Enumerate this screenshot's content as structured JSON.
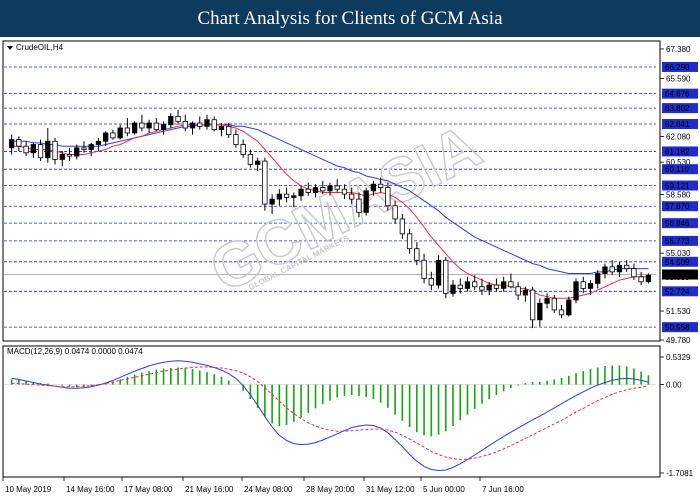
{
  "header": {
    "title": "Chart Analysis for Clients of GCM Asia"
  },
  "watermark": {
    "text": "GCMASIA",
    "subtext": "GLOBAL CAPITAL MARKETS"
  },
  "colors": {
    "banner": "#0e3a5e",
    "level_line": "#1f2cc8",
    "level_label_bg": "#1f2cc8",
    "current_bg": "#000000",
    "ma_fast": "#e8314a",
    "ma_slow": "#2a3fd6",
    "candle": "#000000",
    "hist_pos": "#1aa01a",
    "macd_line": "#2a3fd6",
    "signal_line": "#e8314a"
  },
  "chart_data": [
    {
      "type": "candlestick",
      "symbol_label": "CrudeOIL,H4",
      "x_ticks": [
        "10 May 2019",
        "14 May 16:00",
        "17 May 08:00",
        "21 May 16:00",
        "24 May 08:00",
        "28 May 20:00",
        "31 May 12:00",
        "5 Jun 00:00",
        "7 Jun 16:00"
      ],
      "y_ticks": [
        "67.380",
        "65.590",
        "62.080",
        "60.530",
        "58.580",
        "55.030",
        "51.530",
        "49.780"
      ],
      "ylim": [
        49.78,
        67.8
      ],
      "horizontal_levels": [
        "66.290",
        "64.676",
        "63.802",
        "62.841",
        "61.182",
        "60.110",
        "59.121",
        "57.870",
        "56.846",
        "55.773",
        "54.509",
        "52.724",
        "50.558"
      ],
      "current_price": "53.740",
      "current_price_secondary": "53.580",
      "candles": [
        {
          "o": 61.4,
          "h": 62.2,
          "l": 61.0,
          "c": 61.9
        },
        {
          "o": 61.9,
          "h": 62.1,
          "l": 61.2,
          "c": 61.5
        },
        {
          "o": 61.5,
          "h": 61.8,
          "l": 60.9,
          "c": 61.1
        },
        {
          "o": 61.1,
          "h": 61.7,
          "l": 60.8,
          "c": 61.6
        },
        {
          "o": 61.6,
          "h": 61.9,
          "l": 60.6,
          "c": 60.8
        },
        {
          "o": 60.8,
          "h": 62.6,
          "l": 60.5,
          "c": 61.8
        },
        {
          "o": 61.8,
          "h": 62.0,
          "l": 60.4,
          "c": 60.7
        },
        {
          "o": 60.7,
          "h": 61.2,
          "l": 60.3,
          "c": 61.0
        },
        {
          "o": 61.0,
          "h": 61.4,
          "l": 60.6,
          "c": 60.9
        },
        {
          "o": 60.9,
          "h": 61.6,
          "l": 60.7,
          "c": 61.4
        },
        {
          "o": 61.4,
          "h": 61.8,
          "l": 61.1,
          "c": 61.3
        },
        {
          "o": 61.3,
          "h": 61.7,
          "l": 60.9,
          "c": 61.6
        },
        {
          "o": 61.6,
          "h": 62.0,
          "l": 61.2,
          "c": 61.8
        },
        {
          "o": 61.8,
          "h": 62.4,
          "l": 61.5,
          "c": 62.3
        },
        {
          "o": 62.3,
          "h": 62.5,
          "l": 61.9,
          "c": 62.0
        },
        {
          "o": 62.0,
          "h": 62.8,
          "l": 61.9,
          "c": 62.6
        },
        {
          "o": 62.6,
          "h": 63.2,
          "l": 62.1,
          "c": 62.3
        },
        {
          "o": 62.3,
          "h": 63.0,
          "l": 62.2,
          "c": 62.9
        },
        {
          "o": 62.9,
          "h": 63.4,
          "l": 62.4,
          "c": 62.6
        },
        {
          "o": 62.6,
          "h": 63.1,
          "l": 62.3,
          "c": 62.9
        },
        {
          "o": 62.9,
          "h": 63.2,
          "l": 62.4,
          "c": 62.5
        },
        {
          "o": 62.5,
          "h": 63.0,
          "l": 62.2,
          "c": 62.8
        },
        {
          "o": 62.8,
          "h": 63.5,
          "l": 62.6,
          "c": 63.3
        },
        {
          "o": 63.3,
          "h": 63.7,
          "l": 62.8,
          "c": 63.0
        },
        {
          "o": 63.0,
          "h": 63.4,
          "l": 62.4,
          "c": 62.6
        },
        {
          "o": 62.6,
          "h": 63.0,
          "l": 62.2,
          "c": 62.9
        },
        {
          "o": 62.9,
          "h": 63.3,
          "l": 62.5,
          "c": 62.7
        },
        {
          "o": 62.7,
          "h": 63.4,
          "l": 62.5,
          "c": 63.1
        },
        {
          "o": 63.1,
          "h": 63.3,
          "l": 62.4,
          "c": 62.5
        },
        {
          "o": 62.5,
          "h": 62.9,
          "l": 62.1,
          "c": 62.7
        },
        {
          "o": 62.7,
          "h": 62.9,
          "l": 62.0,
          "c": 62.2
        },
        {
          "o": 62.2,
          "h": 62.5,
          "l": 61.4,
          "c": 61.6
        },
        {
          "o": 61.6,
          "h": 61.9,
          "l": 60.8,
          "c": 61.0
        },
        {
          "o": 61.0,
          "h": 61.3,
          "l": 60.2,
          "c": 60.4
        },
        {
          "o": 60.4,
          "h": 60.8,
          "l": 60.0,
          "c": 60.6
        },
        {
          "o": 60.6,
          "h": 60.8,
          "l": 57.6,
          "c": 58.0
        },
        {
          "o": 58.0,
          "h": 58.6,
          "l": 57.4,
          "c": 58.3
        },
        {
          "o": 58.3,
          "h": 58.9,
          "l": 57.9,
          "c": 58.6
        },
        {
          "o": 58.6,
          "h": 59.0,
          "l": 58.1,
          "c": 58.4
        },
        {
          "o": 58.4,
          "h": 58.7,
          "l": 57.8,
          "c": 58.5
        },
        {
          "o": 58.5,
          "h": 59.1,
          "l": 58.2,
          "c": 58.9
        },
        {
          "o": 58.9,
          "h": 59.3,
          "l": 58.5,
          "c": 58.7
        },
        {
          "o": 58.7,
          "h": 59.2,
          "l": 58.4,
          "c": 59.0
        },
        {
          "o": 59.0,
          "h": 59.4,
          "l": 58.6,
          "c": 58.8
        },
        {
          "o": 58.8,
          "h": 59.3,
          "l": 58.5,
          "c": 59.1
        },
        {
          "o": 59.1,
          "h": 59.5,
          "l": 58.7,
          "c": 58.9
        },
        {
          "o": 58.9,
          "h": 59.2,
          "l": 58.3,
          "c": 58.6
        },
        {
          "o": 58.6,
          "h": 59.0,
          "l": 58.0,
          "c": 58.3
        },
        {
          "o": 58.3,
          "h": 58.7,
          "l": 57.2,
          "c": 57.5
        },
        {
          "o": 57.5,
          "h": 59.0,
          "l": 57.3,
          "c": 58.8
        },
        {
          "o": 58.8,
          "h": 59.4,
          "l": 58.5,
          "c": 59.2
        },
        {
          "o": 59.2,
          "h": 59.6,
          "l": 58.7,
          "c": 59.0
        },
        {
          "o": 59.0,
          "h": 59.3,
          "l": 57.6,
          "c": 57.9
        },
        {
          "o": 57.9,
          "h": 58.2,
          "l": 56.8,
          "c": 57.1
        },
        {
          "o": 57.1,
          "h": 57.4,
          "l": 55.9,
          "c": 56.2
        },
        {
          "o": 56.2,
          "h": 56.5,
          "l": 55.0,
          "c": 55.3
        },
        {
          "o": 55.3,
          "h": 55.7,
          "l": 54.3,
          "c": 54.6
        },
        {
          "o": 54.6,
          "h": 55.0,
          "l": 53.2,
          "c": 53.5
        },
        {
          "o": 53.5,
          "h": 53.9,
          "l": 52.8,
          "c": 53.1
        },
        {
          "o": 53.1,
          "h": 54.9,
          "l": 52.9,
          "c": 54.6
        },
        {
          "o": 54.6,
          "h": 54.8,
          "l": 52.3,
          "c": 52.6
        },
        {
          "o": 52.6,
          "h": 53.4,
          "l": 52.4,
          "c": 53.1
        },
        {
          "o": 53.1,
          "h": 53.5,
          "l": 52.6,
          "c": 52.9
        },
        {
          "o": 52.9,
          "h": 53.6,
          "l": 52.7,
          "c": 53.3
        },
        {
          "o": 53.3,
          "h": 53.7,
          "l": 52.8,
          "c": 53.0
        },
        {
          "o": 53.0,
          "h": 53.5,
          "l": 52.5,
          "c": 52.8
        },
        {
          "o": 52.8,
          "h": 53.3,
          "l": 52.5,
          "c": 53.1
        },
        {
          "o": 53.1,
          "h": 53.5,
          "l": 52.7,
          "c": 52.9
        },
        {
          "o": 52.9,
          "h": 53.6,
          "l": 52.7,
          "c": 53.3
        },
        {
          "o": 53.3,
          "h": 53.8,
          "l": 52.9,
          "c": 53.0
        },
        {
          "o": 53.0,
          "h": 53.3,
          "l": 52.2,
          "c": 52.5
        },
        {
          "o": 52.5,
          "h": 53.0,
          "l": 52.1,
          "c": 52.8
        },
        {
          "o": 52.8,
          "h": 53.0,
          "l": 50.5,
          "c": 51.0
        },
        {
          "o": 51.0,
          "h": 52.3,
          "l": 50.6,
          "c": 52.0
        },
        {
          "o": 52.0,
          "h": 52.6,
          "l": 51.7,
          "c": 52.3
        },
        {
          "o": 52.3,
          "h": 52.5,
          "l": 51.4,
          "c": 51.6
        },
        {
          "o": 51.6,
          "h": 51.9,
          "l": 51.1,
          "c": 51.3
        },
        {
          "o": 51.3,
          "h": 52.4,
          "l": 51.2,
          "c": 52.2
        },
        {
          "o": 52.2,
          "h": 53.5,
          "l": 52.0,
          "c": 53.3
        },
        {
          "o": 53.3,
          "h": 53.6,
          "l": 52.6,
          "c": 52.9
        },
        {
          "o": 52.9,
          "h": 53.4,
          "l": 52.5,
          "c": 53.2
        },
        {
          "o": 53.2,
          "h": 54.0,
          "l": 52.9,
          "c": 53.8
        },
        {
          "o": 53.8,
          "h": 54.4,
          "l": 53.5,
          "c": 54.2
        },
        {
          "o": 54.2,
          "h": 54.6,
          "l": 53.7,
          "c": 53.9
        },
        {
          "o": 53.9,
          "h": 54.5,
          "l": 53.6,
          "c": 54.3
        },
        {
          "o": 54.3,
          "h": 54.6,
          "l": 53.9,
          "c": 54.1
        },
        {
          "o": 54.1,
          "h": 54.4,
          "l": 53.4,
          "c": 53.6
        },
        {
          "o": 53.6,
          "h": 53.9,
          "l": 53.1,
          "c": 53.3
        },
        {
          "o": 53.3,
          "h": 53.8,
          "l": 53.2,
          "c": 53.7
        }
      ],
      "ma_fast": [
        61.5,
        61.5,
        61.4,
        61.3,
        61.3,
        61.3,
        61.2,
        61.1,
        61.0,
        61.0,
        61.0,
        61.1,
        61.2,
        61.3,
        61.5,
        61.6,
        61.8,
        62.0,
        62.1,
        62.3,
        62.4,
        62.5,
        62.6,
        62.7,
        62.8,
        62.8,
        62.8,
        62.8,
        62.8,
        62.8,
        62.7,
        62.6,
        62.4,
        62.1,
        61.8,
        61.3,
        60.8,
        60.3,
        59.8,
        59.4,
        59.1,
        58.9,
        58.8,
        58.7,
        58.7,
        58.7,
        58.7,
        58.7,
        58.6,
        58.5,
        58.6,
        58.7,
        58.6,
        58.4,
        58.1,
        57.7,
        57.2,
        56.6,
        56.0,
        55.5,
        55.0,
        54.5,
        54.1,
        53.8,
        53.6,
        53.4,
        53.2,
        53.1,
        53.1,
        53.0,
        52.9,
        52.9,
        52.7,
        52.5,
        52.4,
        52.3,
        52.3,
        52.3,
        52.4,
        52.5,
        52.6,
        52.8,
        53.0,
        53.2,
        53.4,
        53.5,
        53.6,
        53.6,
        53.6
      ],
      "ma_slow": [
        61.8,
        61.8,
        61.8,
        61.7,
        61.7,
        61.6,
        61.6,
        61.5,
        61.5,
        61.5,
        61.5,
        61.5,
        61.5,
        61.6,
        61.7,
        61.8,
        61.9,
        62.0,
        62.1,
        62.2,
        62.3,
        62.4,
        62.5,
        62.6,
        62.7,
        62.7,
        62.8,
        62.8,
        62.8,
        62.8,
        62.8,
        62.7,
        62.7,
        62.6,
        62.5,
        62.3,
        62.1,
        61.9,
        61.7,
        61.5,
        61.3,
        61.1,
        60.9,
        60.7,
        60.5,
        60.3,
        60.2,
        60.0,
        59.9,
        59.7,
        59.6,
        59.5,
        59.4,
        59.2,
        59.0,
        58.8,
        58.5,
        58.2,
        57.9,
        57.6,
        57.2,
        56.9,
        56.6,
        56.3,
        56.0,
        55.8,
        55.6,
        55.4,
        55.2,
        55.0,
        54.8,
        54.6,
        54.4,
        54.3,
        54.1,
        54.0,
        53.9,
        53.8,
        53.8,
        53.8,
        53.8,
        53.9,
        53.9,
        54.0,
        54.1,
        54.1,
        54.1,
        54.1,
        54.1
      ]
    },
    {
      "type": "macd",
      "label": "MACD(12,26,9) 0.0474 0.0000 0.0474",
      "y_ticks": [
        "0.5329",
        "0.00",
        "-1.7081"
      ],
      "ylim": [
        -1.7081,
        0.5329
      ],
      "histogram": [
        0.1,
        0.09,
        0.07,
        0.05,
        0.03,
        0.02,
        0.0,
        -0.02,
        -0.04,
        -0.05,
        -0.05,
        -0.03,
        -0.01,
        0.02,
        0.06,
        0.1,
        0.15,
        0.19,
        0.23,
        0.26,
        0.29,
        0.31,
        0.32,
        0.33,
        0.32,
        0.3,
        0.27,
        0.24,
        0.2,
        0.15,
        0.08,
        0.0,
        -0.12,
        -0.28,
        -0.45,
        -0.62,
        -0.75,
        -0.8,
        -0.78,
        -0.72,
        -0.64,
        -0.55,
        -0.46,
        -0.38,
        -0.31,
        -0.25,
        -0.22,
        -0.2,
        -0.22,
        -0.24,
        -0.28,
        -0.35,
        -0.45,
        -0.58,
        -0.7,
        -0.82,
        -0.92,
        -0.98,
        -1.0,
        -0.97,
        -0.9,
        -0.8,
        -0.69,
        -0.58,
        -0.47,
        -0.37,
        -0.28,
        -0.2,
        -0.13,
        -0.07,
        -0.02,
        0.03,
        0.05,
        0.05,
        0.07,
        0.1,
        0.13,
        0.17,
        0.22,
        0.26,
        0.3,
        0.33,
        0.36,
        0.37,
        0.37,
        0.35,
        0.31,
        0.25,
        0.18
      ],
      "macd": [
        0.12,
        0.1,
        0.07,
        0.04,
        0.01,
        -0.01,
        -0.03,
        -0.05,
        -0.07,
        -0.07,
        -0.06,
        -0.04,
        -0.01,
        0.03,
        0.08,
        0.14,
        0.2,
        0.26,
        0.31,
        0.36,
        0.4,
        0.43,
        0.45,
        0.46,
        0.45,
        0.43,
        0.4,
        0.37,
        0.33,
        0.28,
        0.21,
        0.12,
        -0.02,
        -0.2,
        -0.4,
        -0.62,
        -0.82,
        -0.98,
        -1.08,
        -1.14,
        -1.16,
        -1.15,
        -1.12,
        -1.07,
        -1.01,
        -0.95,
        -0.89,
        -0.83,
        -0.8,
        -0.78,
        -0.79,
        -0.84,
        -0.93,
        -1.06,
        -1.2,
        -1.35,
        -1.48,
        -1.58,
        -1.64,
        -1.66,
        -1.65,
        -1.6,
        -1.53,
        -1.45,
        -1.36,
        -1.27,
        -1.18,
        -1.09,
        -1.0,
        -0.92,
        -0.84,
        -0.76,
        -0.68,
        -0.61,
        -0.53,
        -0.45,
        -0.37,
        -0.29,
        -0.21,
        -0.14,
        -0.07,
        -0.01,
        0.04,
        0.08,
        0.11,
        0.12,
        0.11,
        0.08,
        0.05
      ],
      "signal": [
        0.02,
        0.02,
        0.01,
        0.0,
        -0.01,
        -0.02,
        -0.03,
        -0.04,
        -0.04,
        -0.04,
        -0.03,
        -0.02,
        0.0,
        0.02,
        0.05,
        0.08,
        0.11,
        0.14,
        0.17,
        0.2,
        0.23,
        0.26,
        0.28,
        0.3,
        0.32,
        0.33,
        0.34,
        0.34,
        0.33,
        0.32,
        0.3,
        0.27,
        0.22,
        0.15,
        0.06,
        -0.06,
        -0.19,
        -0.32,
        -0.45,
        -0.56,
        -0.66,
        -0.74,
        -0.8,
        -0.85,
        -0.88,
        -0.9,
        -0.9,
        -0.89,
        -0.88,
        -0.87,
        -0.86,
        -0.86,
        -0.88,
        -0.92,
        -0.98,
        -1.05,
        -1.13,
        -1.21,
        -1.29,
        -1.35,
        -1.4,
        -1.43,
        -1.45,
        -1.44,
        -1.42,
        -1.39,
        -1.35,
        -1.3,
        -1.24,
        -1.18,
        -1.11,
        -1.04,
        -0.97,
        -0.9,
        -0.83,
        -0.76,
        -0.69,
        -0.61,
        -0.53,
        -0.46,
        -0.38,
        -0.31,
        -0.25,
        -0.19,
        -0.14,
        -0.1,
        -0.07,
        -0.05,
        -0.03
      ]
    }
  ]
}
